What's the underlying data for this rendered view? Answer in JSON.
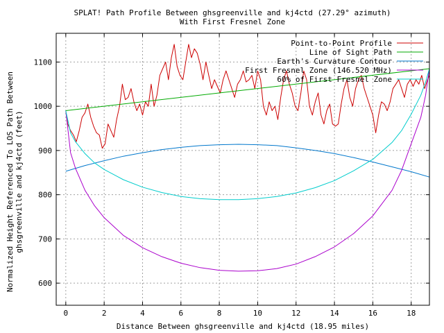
{
  "chart_data": {
    "type": "line",
    "title": "SPLAT! Path Profile Between ghsgreenville and kj4ctd (27.29° azimuth)",
    "subtitle": "With First Fresnel Zone",
    "xlabel": "Distance Between ghsgreenville and kj4ctd (18.95 miles)",
    "ylabel_line1": "Normalized Height Referenced To LOS Path Between",
    "ylabel_line2": "ghsgreenville and kj4ctd (feet)",
    "xlim": [
      -0.5,
      18.95
    ],
    "ylim": [
      550,
      1165
    ],
    "x_ticks": [
      0,
      2,
      4,
      6,
      8,
      10,
      12,
      14,
      16,
      18
    ],
    "y_ticks": [
      600,
      700,
      800,
      900,
      1000,
      1100
    ],
    "grid": true,
    "legend_position": "top-right",
    "series": [
      {
        "name": "Point-to-Point Profile",
        "color": "#cc0000",
        "x": [
          0,
          0.1,
          0.25,
          0.4,
          0.55,
          0.7,
          0.85,
          1.0,
          1.15,
          1.3,
          1.45,
          1.6,
          1.75,
          1.9,
          2.05,
          2.2,
          2.35,
          2.5,
          2.65,
          2.8,
          2.95,
          3.1,
          3.25,
          3.4,
          3.55,
          3.7,
          3.85,
          4.0,
          4.15,
          4.3,
          4.45,
          4.6,
          4.75,
          4.9,
          5.05,
          5.2,
          5.35,
          5.5,
          5.65,
          5.8,
          5.95,
          6.1,
          6.25,
          6.4,
          6.55,
          6.7,
          6.85,
          7.0,
          7.15,
          7.3,
          7.45,
          7.6,
          7.75,
          7.9,
          8.05,
          8.2,
          8.35,
          8.5,
          8.65,
          8.8,
          8.95,
          9.1,
          9.25,
          9.4,
          9.55,
          9.7,
          9.85,
          10.0,
          10.15,
          10.3,
          10.45,
          10.6,
          10.75,
          10.9,
          11.05,
          11.2,
          11.35,
          11.5,
          11.65,
          11.8,
          11.95,
          12.1,
          12.25,
          12.4,
          12.55,
          12.7,
          12.85,
          13.0,
          13.15,
          13.3,
          13.45,
          13.6,
          13.75,
          13.9,
          14.05,
          14.2,
          14.35,
          14.5,
          14.65,
          14.8,
          14.95,
          15.1,
          15.25,
          15.4,
          15.55,
          15.7,
          15.85,
          16.0,
          16.15,
          16.3,
          16.45,
          16.6,
          16.75,
          16.9,
          17.05,
          17.2,
          17.35,
          17.5,
          17.65,
          17.8,
          17.95,
          18.1,
          18.25,
          18.4,
          18.55,
          18.7,
          18.85,
          18.95
        ],
        "y": [
          990,
          960,
          945,
          935,
          920,
          945,
          975,
          985,
          1005,
          975,
          955,
          940,
          935,
          905,
          915,
          960,
          945,
          930,
          970,
          1000,
          1050,
          1015,
          1020,
          1040,
          1010,
          990,
          1005,
          980,
          1010,
          1000,
          1050,
          1000,
          1025,
          1070,
          1085,
          1100,
          1060,
          1110,
          1140,
          1090,
          1070,
          1060,
          1100,
          1140,
          1110,
          1130,
          1120,
          1095,
          1060,
          1100,
          1070,
          1040,
          1060,
          1045,
          1030,
          1060,
          1080,
          1060,
          1040,
          1020,
          1050,
          1060,
          1080,
          1055,
          1060,
          1070,
          1040,
          1080,
          1060,
          1000,
          980,
          1010,
          990,
          1000,
          970,
          1020,
          1060,
          1080,
          1050,
          1030,
          1000,
          990,
          1030,
          1080,
          1060,
          1000,
          980,
          1010,
          1030,
          980,
          960,
          990,
          1005,
          960,
          955,
          960,
          1005,
          1040,
          1060,
          1020,
          1000,
          1040,
          1060,
          1070,
          1040,
          1020,
          1000,
          980,
          940,
          980,
          1010,
          1005,
          990,
          1010,
          1040,
          1050,
          1060,
          1040,
          1020,
          1050,
          1060,
          1045,
          1060,
          1050,
          1070,
          1040,
          1060,
          1070
        ]
      },
      {
        "name": "Line of Sight Path",
        "color": "#00aa00",
        "x": [
          0,
          18.95
        ],
        "y": [
          990,
          1085
        ]
      },
      {
        "name": "Earth's Curvature Contour",
        "color": "#0077cc",
        "x": [
          0,
          1,
          2,
          3,
          4,
          5,
          6,
          7,
          8,
          9,
          10,
          11,
          12,
          13,
          14,
          15,
          16,
          17,
          18,
          18.95
        ],
        "y": [
          853,
          866,
          877,
          887,
          895,
          902,
          907,
          911,
          913,
          914,
          913,
          911,
          906,
          900,
          893,
          884,
          874,
          863,
          852,
          840
        ]
      },
      {
        "name": "First Fresnel Zone (146.520 MHz)",
        "color": "#aa00cc",
        "x": [
          0,
          0.25,
          0.5,
          1,
          1.5,
          2,
          3,
          4,
          5,
          6,
          7,
          8,
          9,
          10,
          11,
          12,
          13,
          14,
          15,
          16,
          17,
          17.5,
          18,
          18.5,
          18.75,
          18.95
        ],
        "y": [
          990,
          895,
          860,
          810,
          775,
          748,
          708,
          680,
          660,
          645,
          635,
          629,
          627,
          628,
          633,
          643,
          660,
          682,
          712,
          752,
          810,
          855,
          915,
          975,
          1025,
          1085
        ]
      },
      {
        "name": "60% of First Fresnel Zone",
        "color": "#00cccc",
        "x": [
          0,
          0.25,
          0.5,
          1,
          1.5,
          2,
          3,
          4,
          5,
          6,
          7,
          8,
          9,
          10,
          11,
          12,
          13,
          14,
          15,
          16,
          17,
          17.5,
          18,
          18.5,
          18.75,
          18.95
        ],
        "y": [
          990,
          940,
          920,
          893,
          872,
          857,
          834,
          817,
          805,
          796,
          791,
          789,
          789,
          791,
          796,
          804,
          816,
          832,
          854,
          880,
          918,
          945,
          982,
          1025,
          1055,
          1085
        ]
      }
    ]
  }
}
